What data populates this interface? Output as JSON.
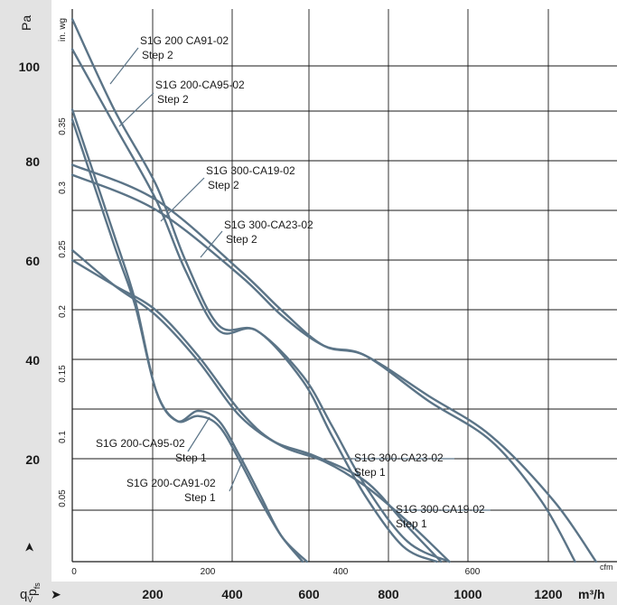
{
  "chart_data": {
    "type": "line",
    "y_axis_left_label": "Pa",
    "y_axis_left_sub_label": "in. wg",
    "y_axis_left_symbol": "p",
    "y_axis_left_symbol_sub": "fs",
    "y_axis_left_arrow": "➤",
    "pa_ticks": [
      "100",
      "80",
      "60",
      "40",
      "20"
    ],
    "inwg_ticks": [
      "0.35",
      "0.3",
      "0.25",
      "0.2",
      "0.15",
      "0.1",
      "0.05"
    ],
    "x_axis_bottom_symbol": "q",
    "x_axis_bottom_symbol_sub": "V",
    "x_axis_bottom_arrow": "➤",
    "x_axis_bottom_unit": "m³/h",
    "m3h_ticks": [
      "200",
      "400",
      "600",
      "800",
      "1000",
      "1200"
    ],
    "x_axis_top_unit": "cfm",
    "cfm_ticks": [
      "0",
      "200",
      "400",
      "600"
    ],
    "xlim_m3h": [
      0,
      1300
    ],
    "ylim_pa": [
      0,
      110
    ],
    "grid": true,
    "series": [
      {
        "label": [
          "S1G 200 CA91-02",
          "Step 2"
        ],
        "points": [
          [
            0,
            108
          ],
          [
            100,
            90
          ],
          [
            200,
            75
          ],
          [
            270,
            60
          ],
          [
            350,
            47
          ],
          [
            440,
            46
          ],
          [
            550,
            37
          ],
          [
            620,
            27
          ],
          [
            700,
            15
          ],
          [
            800,
            4
          ],
          [
            900,
            0
          ]
        ]
      },
      {
        "label": [
          "S1G 200-CA95-02",
          "Step 2"
        ],
        "points": [
          [
            0,
            102
          ],
          [
            100,
            87
          ],
          [
            200,
            72
          ],
          [
            270,
            58
          ],
          [
            350,
            46
          ],
          [
            440,
            46
          ],
          [
            550,
            36
          ],
          [
            620,
            25
          ],
          [
            700,
            13
          ],
          [
            790,
            3
          ],
          [
            870,
            0
          ]
        ]
      },
      {
        "label": [
          "S1G 300-CA19-02",
          "Step 2"
        ],
        "points": [
          [
            0,
            79
          ],
          [
            200,
            72
          ],
          [
            400,
            58
          ],
          [
            500,
            50
          ],
          [
            600,
            43
          ],
          [
            700,
            41
          ],
          [
            850,
            33
          ],
          [
            1000,
            25
          ],
          [
            1150,
            12
          ],
          [
            1250,
            0
          ]
        ]
      },
      {
        "label": [
          "S1G 300-CA23-02",
          "Step 2"
        ],
        "points": [
          [
            0,
            77
          ],
          [
            200,
            70
          ],
          [
            400,
            57
          ],
          [
            500,
            49
          ],
          [
            600,
            43
          ],
          [
            700,
            41
          ],
          [
            850,
            32
          ],
          [
            1000,
            24
          ],
          [
            1120,
            12
          ],
          [
            1200,
            0
          ]
        ]
      },
      {
        "label": [
          "S1G 200-CA95-02",
          "Step 1"
        ],
        "points": [
          [
            0,
            88
          ],
          [
            100,
            63
          ],
          [
            150,
            51
          ],
          [
            200,
            34
          ],
          [
            250,
            28
          ],
          [
            300,
            29
          ],
          [
            350,
            27
          ],
          [
            400,
            20
          ],
          [
            450,
            12
          ],
          [
            500,
            5
          ],
          [
            550,
            0
          ]
        ]
      },
      {
        "label": [
          "S1G 200-CA91-02",
          "Step 1"
        ],
        "points": [
          [
            0,
            90
          ],
          [
            100,
            65
          ],
          [
            150,
            52
          ],
          [
            200,
            34
          ],
          [
            250,
            28
          ],
          [
            300,
            30
          ],
          [
            350,
            28
          ],
          [
            400,
            21
          ],
          [
            450,
            13
          ],
          [
            500,
            5
          ],
          [
            560,
            0
          ]
        ]
      },
      {
        "label": [
          "S1G 300-CA23-02",
          "Step 1"
        ],
        "points": [
          [
            0,
            60
          ],
          [
            100,
            55
          ],
          [
            200,
            50
          ],
          [
            300,
            41
          ],
          [
            400,
            30
          ],
          [
            480,
            24
          ],
          [
            580,
            21
          ],
          [
            700,
            16
          ],
          [
            800,
            7
          ],
          [
            880,
            0
          ]
        ]
      },
      {
        "label": [
          "S1G 300-CA19-02",
          "Step 1"
        ],
        "points": [
          [
            0,
            62
          ],
          [
            100,
            55
          ],
          [
            200,
            49
          ],
          [
            300,
            40
          ],
          [
            400,
            29
          ],
          [
            500,
            23
          ],
          [
            600,
            20
          ],
          [
            700,
            15
          ],
          [
            800,
            8
          ],
          [
            900,
            0
          ]
        ]
      }
    ],
    "annotations": [
      {
        "text": [
          "S1G 200 CA91-02",
          "Step 2"
        ]
      },
      {
        "text": [
          "S1G 200-CA95-02",
          "Step 2"
        ]
      },
      {
        "text": [
          "S1G 300-CA19-02",
          "Step 2"
        ]
      },
      {
        "text": [
          "S1G 300-CA23-02",
          "Step 2"
        ]
      },
      {
        "text": [
          "S1G 200-CA95-02",
          "Step 1"
        ]
      },
      {
        "text": [
          "S1G 200-CA91-02",
          "Step 1"
        ]
      },
      {
        "text": [
          "S1G 300-CA23-02",
          "Step 1"
        ]
      },
      {
        "text": [
          "S1G 300-CA19-02",
          "Step 1"
        ]
      }
    ],
    "colors": {
      "curve": "#5b7487",
      "grid": "#1a1a1a",
      "band": "#e3e3e3"
    }
  }
}
